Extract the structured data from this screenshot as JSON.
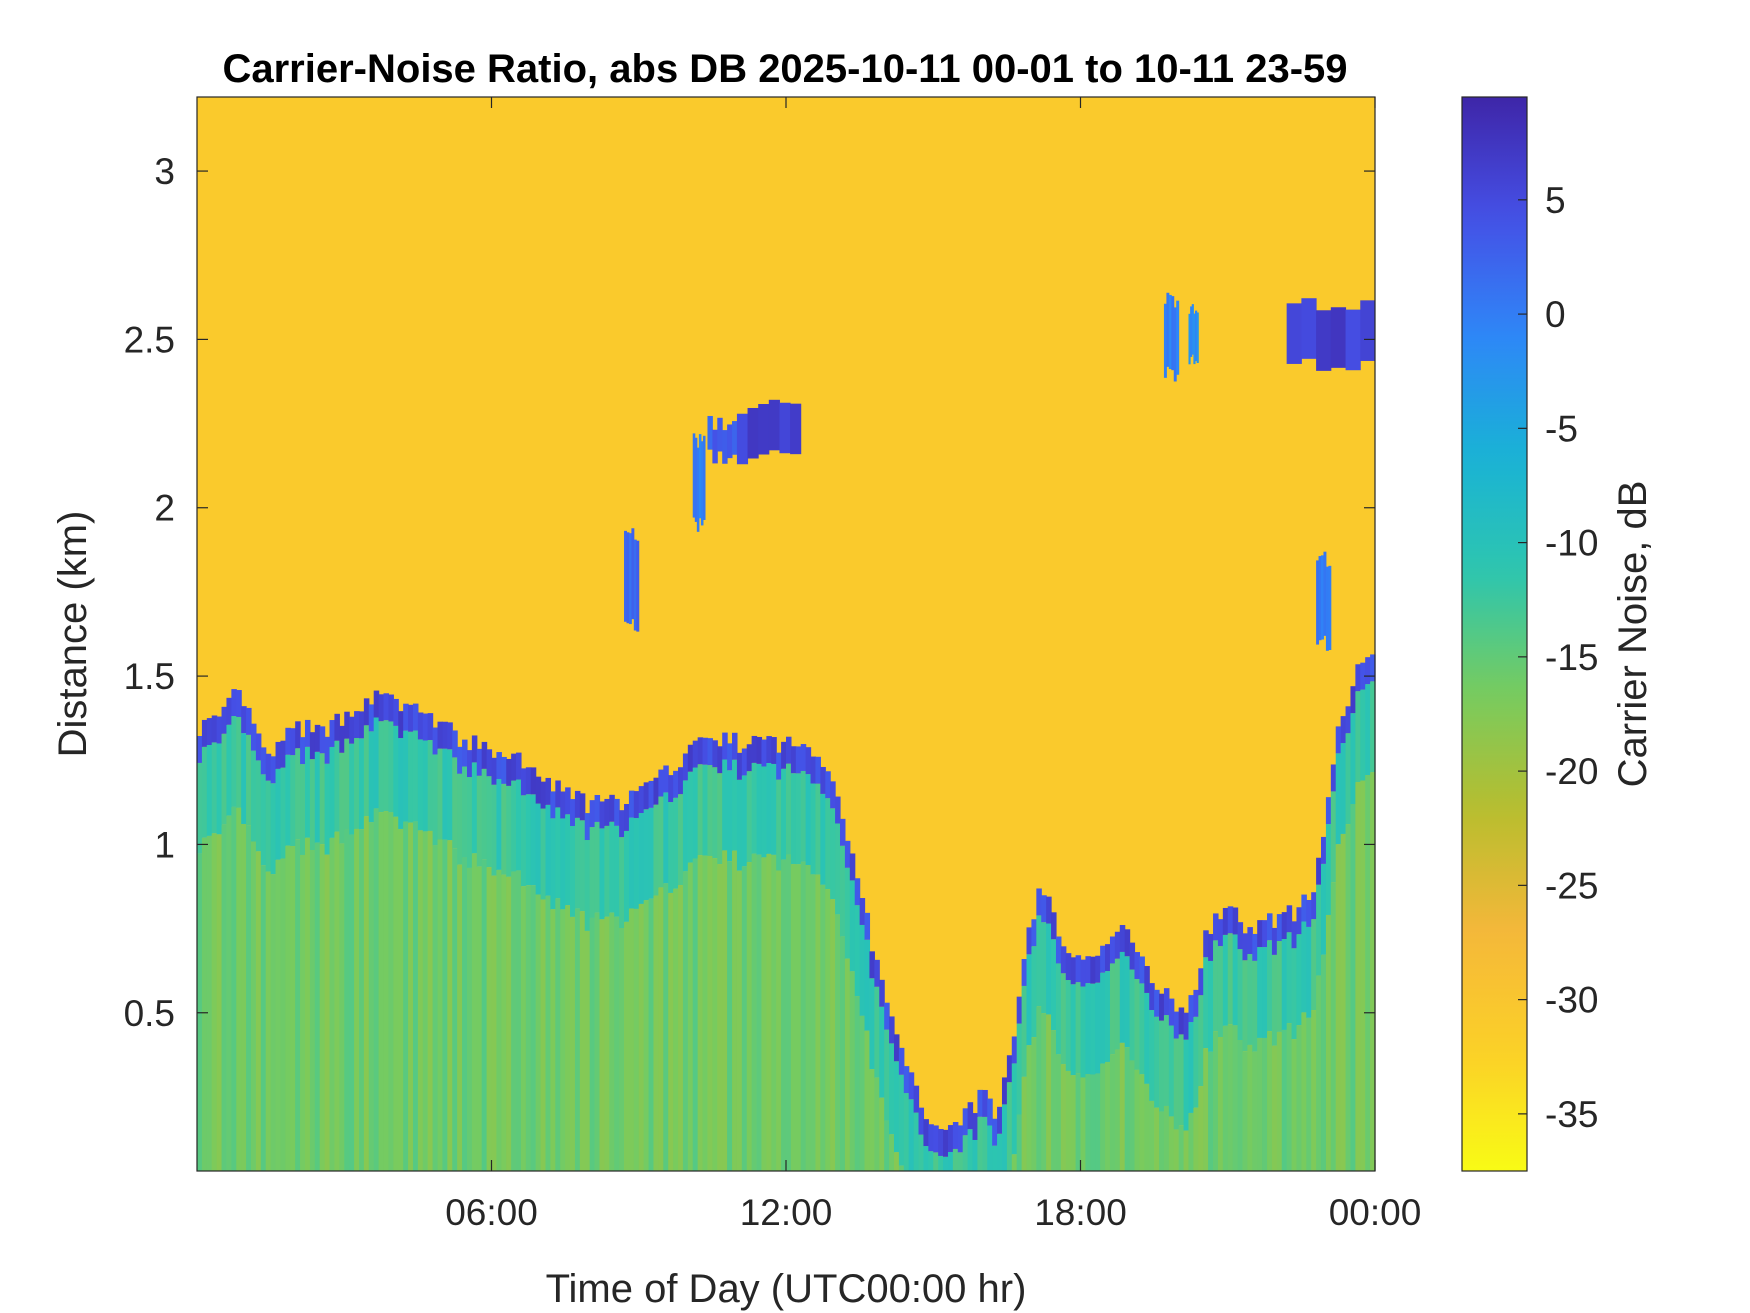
{
  "chart_data": {
    "type": "heatmap",
    "title": "Carrier-Noise Ratio, abs DB 2025-10-11 00-01 to 10-11 23-59",
    "xlabel": "Time of Day (UTC00:00 hr)",
    "ylabel": "Distance (km)",
    "colorbar_label": "Carrier Noise, dB",
    "x_unit": "hours",
    "xlim": [
      0,
      24
    ],
    "ylim": [
      0.03,
      3.22
    ],
    "clim": [
      -37.5,
      9.5
    ],
    "x_ticks": [
      {
        "value": 6,
        "label": "06:00"
      },
      {
        "value": 12,
        "label": "12:00"
      },
      {
        "value": 18,
        "label": "18:00"
      },
      {
        "value": 24,
        "label": "00:00"
      }
    ],
    "y_ticks": [
      {
        "value": 0.5,
        "label": "0.5"
      },
      {
        "value": 1,
        "label": "1"
      },
      {
        "value": 1.5,
        "label": "1.5"
      },
      {
        "value": 2,
        "label": "2"
      },
      {
        "value": 2.5,
        "label": "2.5"
      },
      {
        "value": 3,
        "label": "3"
      }
    ],
    "colorbar_ticks": [
      {
        "value": 5,
        "label": "5"
      },
      {
        "value": 0,
        "label": "0"
      },
      {
        "value": -5,
        "label": "-5"
      },
      {
        "value": -10,
        "label": "-10"
      },
      {
        "value": -15,
        "label": "-15"
      },
      {
        "value": -20,
        "label": "-20"
      },
      {
        "value": -25,
        "label": "-25"
      },
      {
        "value": -30,
        "label": "-30"
      },
      {
        "value": -35,
        "label": "-35"
      }
    ],
    "colormap": "parula-reversed",
    "colormap_stops": [
      "#3e26a8",
      "#4550e6",
      "#2e87f7",
      "#19b2d6",
      "#2ec6ae",
      "#78cb5e",
      "#b9bd2e",
      "#f5b83a",
      "#fbd028",
      "#f9fb15"
    ],
    "background_value": -31,
    "below_layer_value": -16,
    "layer_top": [
      {
        "t": 0.0,
        "km": 1.35
      },
      {
        "t": 0.5,
        "km": 1.37
      },
      {
        "t": 0.8,
        "km": 1.45
      },
      {
        "t": 1.1,
        "km": 1.38
      },
      {
        "t": 1.3,
        "km": 1.28
      },
      {
        "t": 1.6,
        "km": 1.27
      },
      {
        "t": 2.0,
        "km": 1.35
      },
      {
        "t": 2.5,
        "km": 1.33
      },
      {
        "t": 3.0,
        "km": 1.38
      },
      {
        "t": 3.5,
        "km": 1.44
      },
      {
        "t": 4.0,
        "km": 1.42
      },
      {
        "t": 4.5,
        "km": 1.4
      },
      {
        "t": 5.0,
        "km": 1.35
      },
      {
        "t": 5.5,
        "km": 1.3
      },
      {
        "t": 6.0,
        "km": 1.28
      },
      {
        "t": 6.5,
        "km": 1.25
      },
      {
        "t": 7.0,
        "km": 1.2
      },
      {
        "t": 7.5,
        "km": 1.15
      },
      {
        "t": 8.0,
        "km": 1.12
      },
      {
        "t": 8.5,
        "km": 1.12
      },
      {
        "t": 9.0,
        "km": 1.15
      },
      {
        "t": 9.5,
        "km": 1.2
      },
      {
        "t": 10.0,
        "km": 1.28
      },
      {
        "t": 10.5,
        "km": 1.32
      },
      {
        "t": 11.0,
        "km": 1.3
      },
      {
        "t": 11.5,
        "km": 1.3
      },
      {
        "t": 12.0,
        "km": 1.3
      },
      {
        "t": 12.5,
        "km": 1.28
      },
      {
        "t": 13.0,
        "km": 1.2
      },
      {
        "t": 13.3,
        "km": 1.0
      },
      {
        "t": 13.6,
        "km": 0.8
      },
      {
        "t": 14.0,
        "km": 0.55
      },
      {
        "t": 14.4,
        "km": 0.35
      },
      {
        "t": 14.8,
        "km": 0.22
      },
      {
        "t": 15.2,
        "km": 0.15
      },
      {
        "t": 15.6,
        "km": 0.2
      },
      {
        "t": 16.0,
        "km": 0.25
      },
      {
        "t": 16.3,
        "km": 0.2
      },
      {
        "t": 16.6,
        "km": 0.4
      },
      {
        "t": 16.9,
        "km": 0.7
      },
      {
        "t": 17.2,
        "km": 0.9
      },
      {
        "t": 17.5,
        "km": 0.75
      },
      {
        "t": 18.0,
        "km": 0.65
      },
      {
        "t": 18.5,
        "km": 0.7
      },
      {
        "t": 19.0,
        "km": 0.75
      },
      {
        "t": 19.5,
        "km": 0.6
      },
      {
        "t": 20.0,
        "km": 0.5
      },
      {
        "t": 20.3,
        "km": 0.55
      },
      {
        "t": 20.6,
        "km": 0.75
      },
      {
        "t": 21.0,
        "km": 0.8
      },
      {
        "t": 21.5,
        "km": 0.75
      },
      {
        "t": 22.0,
        "km": 0.78
      },
      {
        "t": 22.4,
        "km": 0.8
      },
      {
        "t": 22.8,
        "km": 0.9
      },
      {
        "t": 23.2,
        "km": 1.3
      },
      {
        "t": 23.6,
        "km": 1.5
      },
      {
        "t": 24.0,
        "km": 1.6
      }
    ],
    "elevated_features": [
      {
        "t0": 10.1,
        "t1": 10.35,
        "km0": 1.95,
        "km1": 2.2,
        "value": 0
      },
      {
        "t0": 10.4,
        "t1": 11.0,
        "km0": 2.15,
        "km1": 2.25,
        "value": 3
      },
      {
        "t0": 11.0,
        "t1": 12.3,
        "km0": 2.15,
        "km1": 2.3,
        "value": 6
      },
      {
        "t0": 8.7,
        "t1": 9.0,
        "km0": 1.65,
        "km1": 1.92,
        "value": 2
      },
      {
        "t0": 19.7,
        "t1": 20.0,
        "km0": 2.4,
        "km1": 2.62,
        "value": 0
      },
      {
        "t0": 20.2,
        "t1": 20.4,
        "km0": 2.45,
        "km1": 2.6,
        "value": -2
      },
      {
        "t0": 22.2,
        "t1": 24.0,
        "km0": 2.42,
        "km1": 2.6,
        "value": 6
      },
      {
        "t0": 22.8,
        "t1": 23.1,
        "km0": 1.6,
        "km1": 1.85,
        "value": 0
      }
    ]
  }
}
